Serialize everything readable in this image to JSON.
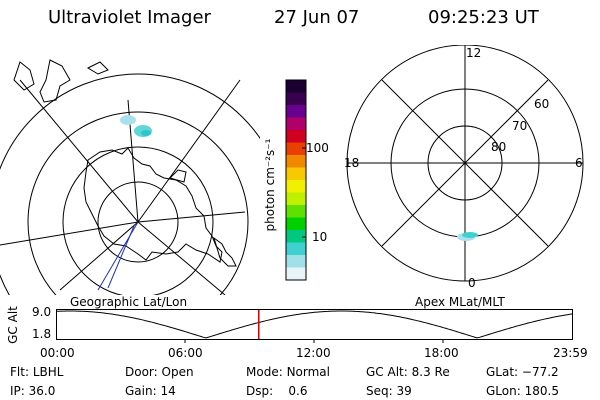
{
  "header": {
    "instrument": "Ultraviolet Imager",
    "date": "27 Jun 07",
    "time": "09:25:23 UT"
  },
  "left_panel": {
    "label": "Geographic Lat/Lon"
  },
  "right_panel": {
    "label": "Apex MLat/MLT",
    "mlt_labels": {
      "top": "12",
      "left": "18",
      "right": "6",
      "bottom": "0"
    },
    "lat_labels": [
      "60",
      "70",
      "80"
    ]
  },
  "colorbar": {
    "unit": "photon cm⁻²s⁻¹",
    "ticks": [
      "100",
      "10"
    ],
    "colors": [
      "#1a0030",
      "#3a0050",
      "#6a0090",
      "#b0006a",
      "#d00020",
      "#e84000",
      "#f08800",
      "#f8c800",
      "#f0f000",
      "#c0f000",
      "#60e000",
      "#00d000",
      "#00c880",
      "#40d0d0",
      "#a0e0e8",
      "#e8f4f8"
    ]
  },
  "altitude_plot": {
    "ylabel": "GC Alt",
    "yticks": [
      "9.0",
      "1.8"
    ],
    "xticks": [
      "00:00",
      "06:00",
      "12:00",
      "18:00",
      "23:59"
    ],
    "current_time_fraction": 0.392,
    "marker_color": "#cc0000"
  },
  "info": {
    "row1": [
      {
        "label": "Flt:",
        "value": "LBHL"
      },
      {
        "label": "Door:",
        "value": "Open"
      },
      {
        "label": "Mode:",
        "value": "Normal"
      },
      {
        "label": "GC Alt:",
        "value": "8.3 Re"
      },
      {
        "label": "GLat:",
        "value": "−77.2"
      }
    ],
    "row2": [
      {
        "label": "IP:",
        "value": "36.0"
      },
      {
        "label": "Gain:",
        "value": "14"
      },
      {
        "label": "Dsp:",
        "value": "0.6"
      },
      {
        "label": "Seq:",
        "value": "39"
      },
      {
        "label": "GLon:",
        "value": "180.5"
      }
    ]
  }
}
